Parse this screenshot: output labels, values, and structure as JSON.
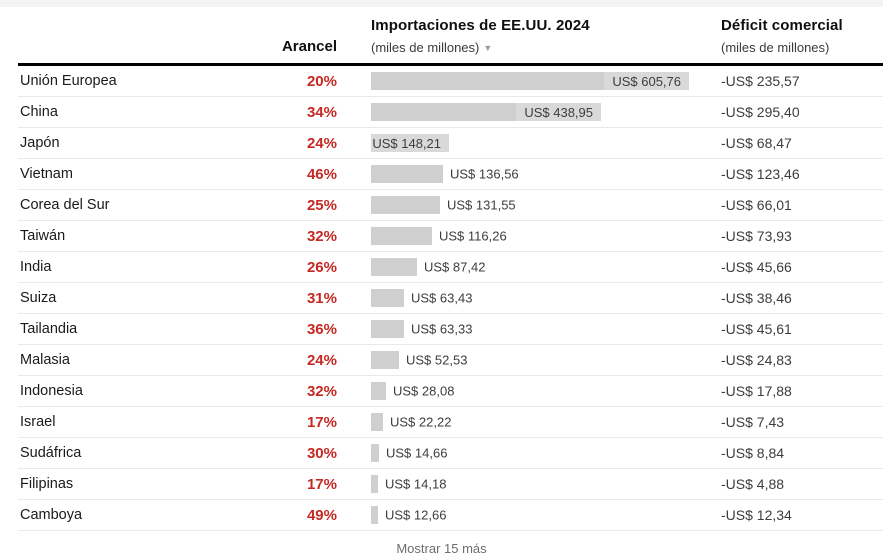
{
  "colors": {
    "tariff_red": "#C62822",
    "bar_gray": "#CFCFCF",
    "divider_gray": "#E9E9E9",
    "header_rule_black": "#000000"
  },
  "header": {
    "tariff_col": "Arancel",
    "imports_col_title": "Importaciones de EE.UU. 2024",
    "imports_col_sub": "(miles de millones)",
    "sort_icon": "▼",
    "deficit_col_title": "Déficit comercial",
    "deficit_col_sub": "(miles de millones)"
  },
  "footer": {
    "show_more_label": "Mostrar 15 más"
  },
  "chart_data": {
    "type": "bar",
    "title": "Importaciones de EE.UU. 2024",
    "unit_note": "miles de millones",
    "sort_order": "descendente por importaciones",
    "xlim": [
      0,
      605.76
    ],
    "rows": [
      {
        "country": "Unión Europea",
        "tariff_label": "20%",
        "imports_value": 605.76,
        "imports_label": "US$ 605,76",
        "deficit_label": "-US$ 235,57"
      },
      {
        "country": "China",
        "tariff_label": "34%",
        "imports_value": 438.95,
        "imports_label": "US$ 438,95",
        "deficit_label": "-US$ 295,40"
      },
      {
        "country": "Japón",
        "tariff_label": "24%",
        "imports_value": 148.21,
        "imports_label": "US$ 148,21",
        "deficit_label": "-US$ 68,47"
      },
      {
        "country": "Vietnam",
        "tariff_label": "46%",
        "imports_value": 136.56,
        "imports_label": "US$ 136,56",
        "deficit_label": "-US$ 123,46"
      },
      {
        "country": "Corea del Sur",
        "tariff_label": "25%",
        "imports_value": 131.55,
        "imports_label": "US$ 131,55",
        "deficit_label": "-US$ 66,01"
      },
      {
        "country": "Taiwán",
        "tariff_label": "32%",
        "imports_value": 116.26,
        "imports_label": "US$ 116,26",
        "deficit_label": "-US$ 73,93"
      },
      {
        "country": "India",
        "tariff_label": "26%",
        "imports_value": 87.42,
        "imports_label": "US$ 87,42",
        "deficit_label": "-US$ 45,66"
      },
      {
        "country": "Suiza",
        "tariff_label": "31%",
        "imports_value": 63.43,
        "imports_label": "US$ 63,43",
        "deficit_label": "-US$ 38,46"
      },
      {
        "country": "Tailandia",
        "tariff_label": "36%",
        "imports_value": 63.33,
        "imports_label": "US$ 63,33",
        "deficit_label": "-US$ 45,61"
      },
      {
        "country": "Malasia",
        "tariff_label": "24%",
        "imports_value": 52.53,
        "imports_label": "US$ 52,53",
        "deficit_label": "-US$ 24,83"
      },
      {
        "country": "Indonesia",
        "tariff_label": "32%",
        "imports_value": 28.08,
        "imports_label": "US$ 28,08",
        "deficit_label": "-US$ 17,88"
      },
      {
        "country": "Israel",
        "tariff_label": "17%",
        "imports_value": 22.22,
        "imports_label": "US$ 22,22",
        "deficit_label": "-US$ 7,43"
      },
      {
        "country": "Sudáfrica",
        "tariff_label": "30%",
        "imports_value": 14.66,
        "imports_label": "US$ 14,66",
        "deficit_label": "-US$ 8,84"
      },
      {
        "country": "Filipinas",
        "tariff_label": "17%",
        "imports_value": 14.18,
        "imports_label": "US$ 14,18",
        "deficit_label": "-US$ 4,88"
      },
      {
        "country": "Camboya",
        "tariff_label": "49%",
        "imports_value": 12.66,
        "imports_label": "US$ 12,66",
        "deficit_label": "-US$ 12,34"
      }
    ]
  }
}
